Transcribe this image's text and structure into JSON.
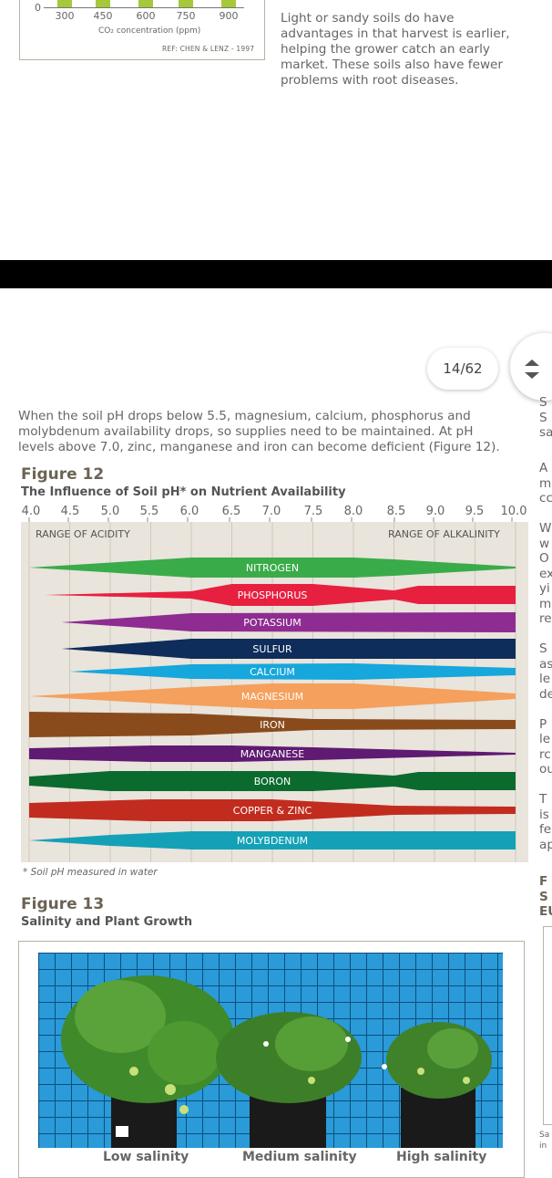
{
  "co2_chart": {
    "zero_label": "0",
    "ticks": [
      "300",
      "450",
      "600",
      "750",
      "900"
    ],
    "axis_label": "CO₂ concentration (ppm)",
    "ref": "REF:  CHEN & LENZ - 1997"
  },
  "intro_text": "Light or sandy soils do have advantages in that harvest is earlier, helping the grower catch an early market. These soils also have fewer problems with root diseases.",
  "page_indicator": "14/62",
  "ph_paragraph": "When the soil pH drops below 5.5, magnesium, calcium, phosphorus and molybdenum availability drops, so supplies need to be maintained.  At pH levels above 7.0, zinc, manganese and iron can become deficient (Figure 12).",
  "figure12": {
    "label": "Figure 12",
    "title": "The Influence of Soil pH* on Nutrient Availability",
    "ph_values": [
      "4.0",
      "4.5",
      "5.0",
      "5.5",
      "6.0",
      "6.5",
      "7.0",
      "7.5",
      "8.0",
      "8.5",
      "9.0",
      "9.5",
      "10.0"
    ],
    "acidity_label": "RANGE OF ACIDITY",
    "alkalinity_label": "RANGE OF ALKALINITY",
    "footnote": "* Soil pH measured in water",
    "nutrients": [
      {
        "name": "NITROGEN",
        "color": "#3aab49"
      },
      {
        "name": "PHOSPHORUS",
        "color": "#e8203f"
      },
      {
        "name": "POTASSIUM",
        "color": "#8e2c91"
      },
      {
        "name": "SULFUR",
        "color": "#0e2d5a"
      },
      {
        "name": "CALCIUM",
        "color": "#16a7dc"
      },
      {
        "name": "MAGNESIUM",
        "color": "#f5a05c"
      },
      {
        "name": "IRON",
        "color": "#8a4b1c"
      },
      {
        "name": "MANGANESE",
        "color": "#5f1a72"
      },
      {
        "name": "BORON",
        "color": "#0b6b2e"
      },
      {
        "name": "COPPER & ZINC",
        "color": "#c22c1f"
      },
      {
        "name": "MOLYBDENUM",
        "color": "#14a1b7"
      }
    ]
  },
  "figure13": {
    "label": "Figure 13",
    "title": "Salinity and Plant Growth",
    "labels": [
      "Low salinity",
      "Medium salinity",
      "High salinity"
    ]
  },
  "right_column_fragments": {
    "top": [
      "S",
      "S",
      "sa"
    ],
    "mid": [
      "A",
      "m",
      "cc",
      "",
      "W",
      "w",
      "O",
      "ex",
      "yi",
      "m",
      "re",
      "",
      "S",
      "as",
      "le",
      "de",
      "",
      "P",
      "le",
      "rc",
      "ou",
      "",
      "T",
      "is",
      "fe",
      "ap"
    ],
    "fig": [
      "F",
      "S",
      "EU"
    ],
    "bottom": [
      "Sa",
      "in"
    ]
  }
}
